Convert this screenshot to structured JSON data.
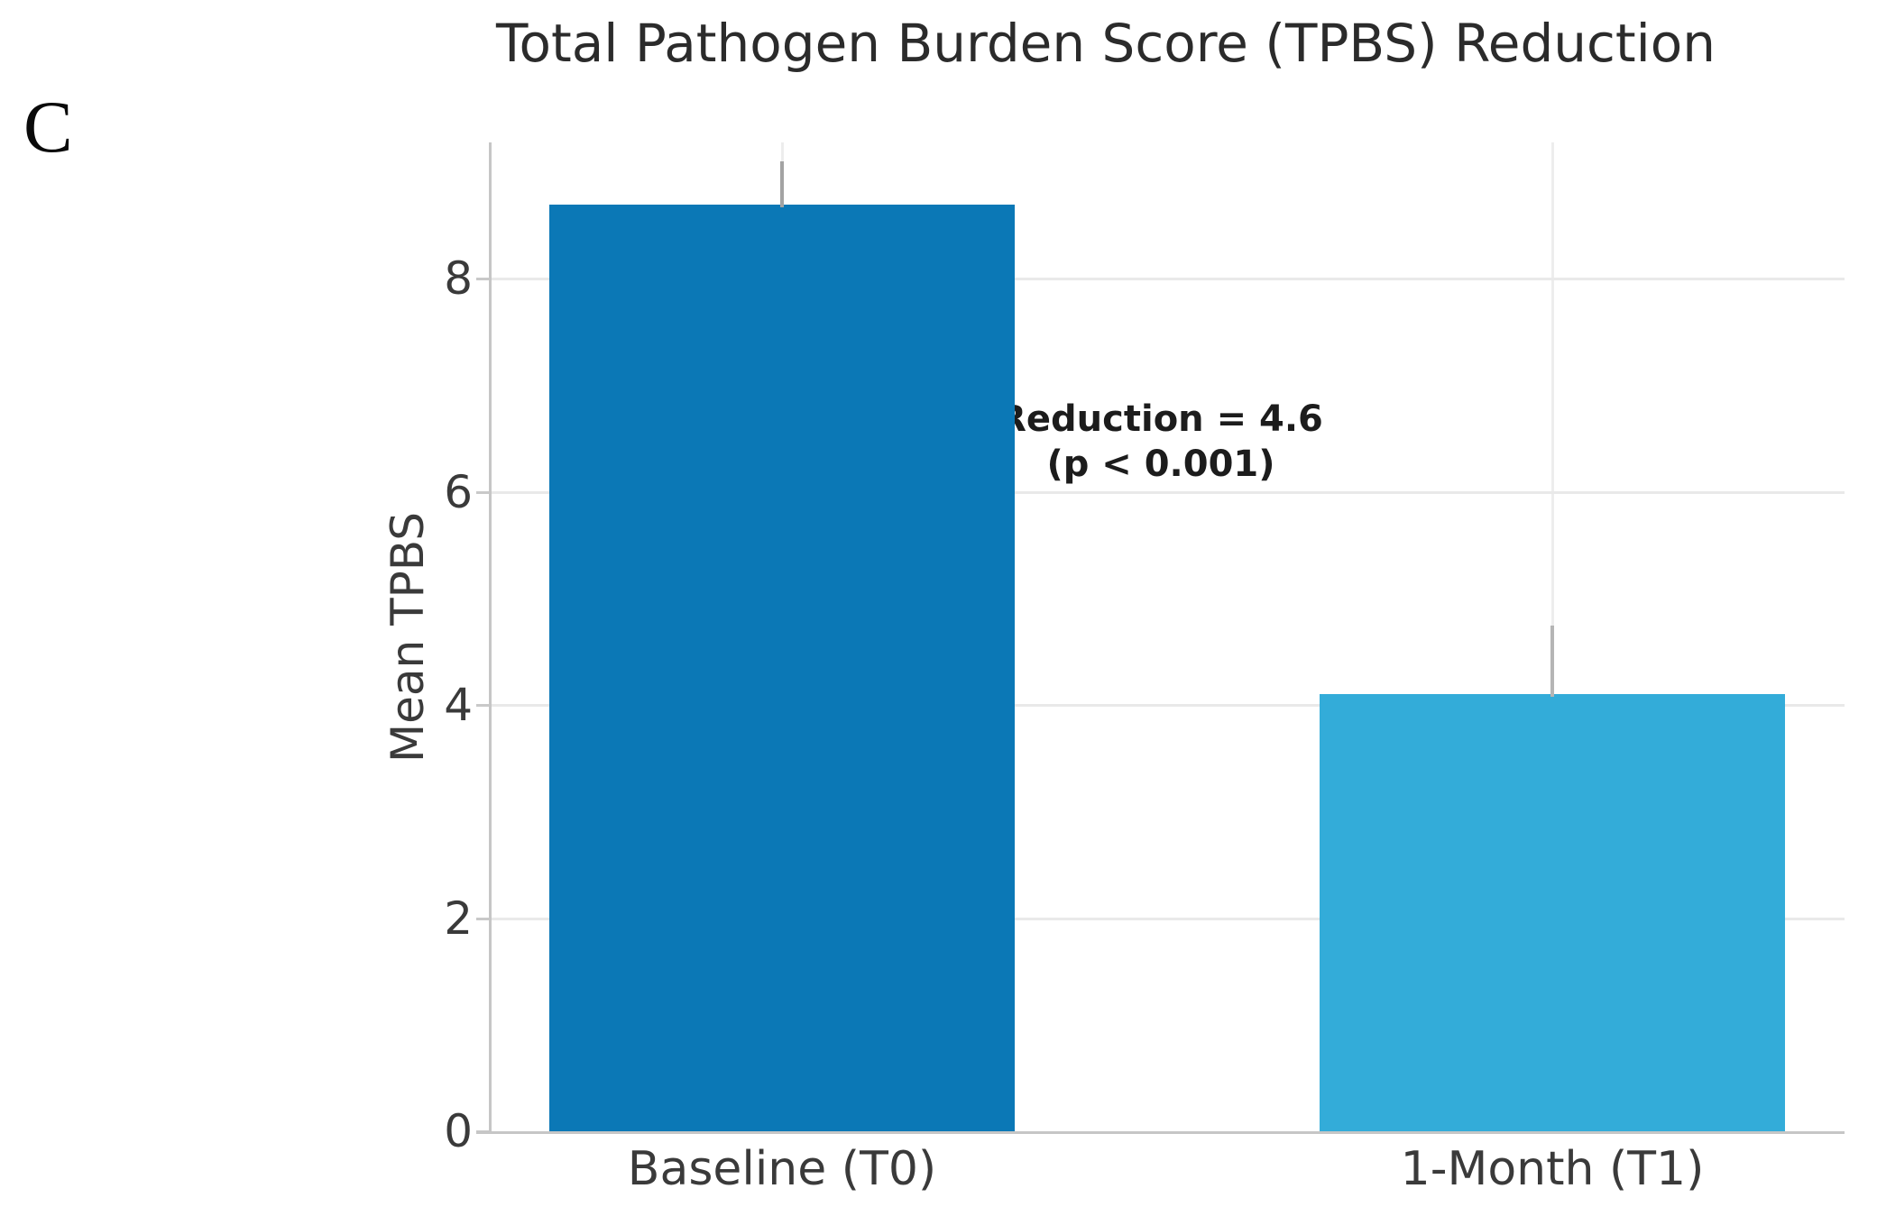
{
  "figure": {
    "panel_label": "C"
  },
  "chart_data": {
    "type": "bar",
    "title": "Total Pathogen Burden Score (TPBS) Reduction",
    "categories": [
      "Baseline (T0)",
      "1-Month (T1)"
    ],
    "values": [
      8.7,
      4.1
    ],
    "error_bars_upper": [
      0.4,
      0.65
    ],
    "bar_colors": [
      "#0b78b6",
      "#33acd9"
    ],
    "error_bar_colors": [
      "#a3a3a3",
      "#b5b5b5"
    ],
    "xlabel": "",
    "ylabel": "Mean TPBS",
    "yticks": [
      0,
      2,
      4,
      6,
      8
    ],
    "ylim": [
      0,
      9.3
    ],
    "grid": "both",
    "legend": "none",
    "annotation": {
      "line1": "Reduction = 4.6",
      "line2": "(p < 0.001)"
    }
  }
}
